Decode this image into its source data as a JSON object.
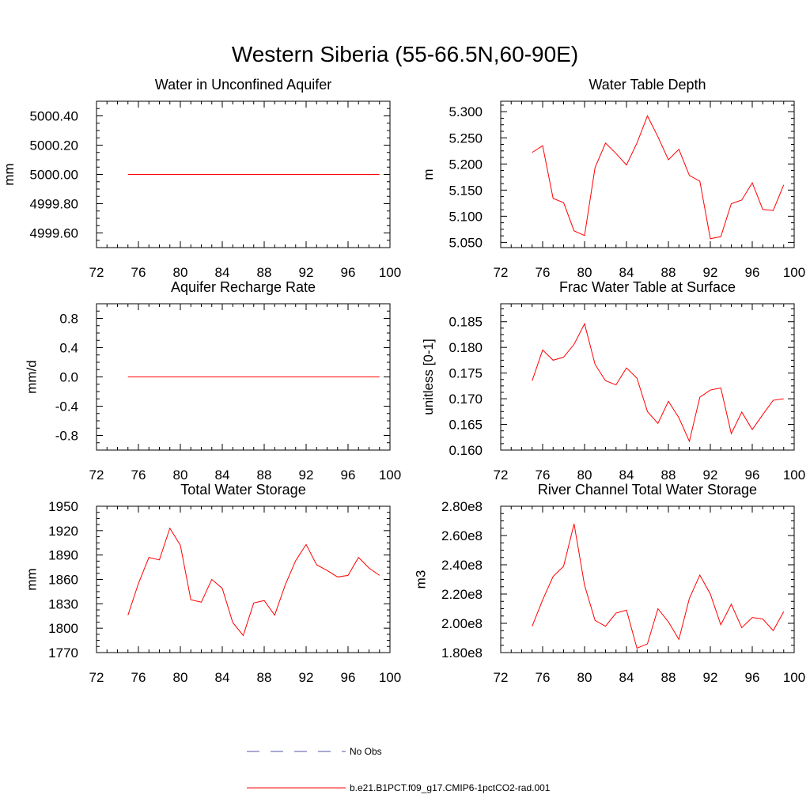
{
  "figure": {
    "title": "Western Siberia (55-66.5N,60-90E)"
  },
  "colors": {
    "model_line": "#ff0000",
    "obs_line": "#5555aa",
    "axis": "#000000"
  },
  "legend": {
    "items": [
      {
        "label": "No Obs",
        "style": "dashed",
        "color": "#5555aa"
      },
      {
        "label": "b.e21.B1PCT.f09_g17.CMIP6-1pctCO2-rad.001",
        "style": "solid",
        "color": "#ff0000"
      }
    ]
  },
  "chart_data": [
    {
      "type": "line",
      "title": "Water in Unconfined Aquifer",
      "xlabel": "",
      "ylabel": "mm",
      "xlim": [
        72,
        100
      ],
      "ylim": [
        4999.5,
        5000.5
      ],
      "xticks": [
        "72",
        "76",
        "80",
        "84",
        "88",
        "92",
        "96",
        "100"
      ],
      "yticks": [
        "4999.60",
        "4999.80",
        "5000.00",
        "5000.20",
        "5000.40"
      ],
      "ytick_values": [
        4999.6,
        4999.8,
        5000.0,
        5000.2,
        5000.4
      ],
      "series": [
        {
          "x": [
            75,
            76,
            77,
            78,
            79,
            80,
            81,
            82,
            83,
            84,
            85,
            86,
            87,
            88,
            89,
            90,
            91,
            92,
            93,
            94,
            95,
            96,
            97,
            98,
            99
          ],
          "values": [
            5000,
            5000,
            5000,
            5000,
            5000,
            5000,
            5000,
            5000,
            5000,
            5000,
            5000,
            5000,
            5000,
            5000,
            5000,
            5000,
            5000,
            5000,
            5000,
            5000,
            5000,
            5000,
            5000,
            5000,
            5000
          ]
        }
      ]
    },
    {
      "type": "line",
      "title": "Water Table Depth",
      "xlabel": "",
      "ylabel": "m",
      "xlim": [
        72,
        100
      ],
      "ylim": [
        5.04,
        5.32
      ],
      "xticks": [
        "72",
        "76",
        "80",
        "84",
        "88",
        "92",
        "96",
        "100"
      ],
      "yticks": [
        "5.050",
        "5.100",
        "5.150",
        "5.200",
        "5.250",
        "5.300"
      ],
      "ytick_values": [
        5.05,
        5.1,
        5.15,
        5.2,
        5.25,
        5.3
      ],
      "series": [
        {
          "x": [
            75,
            76,
            77,
            78,
            79,
            80,
            81,
            82,
            83,
            84,
            85,
            86,
            87,
            88,
            89,
            90,
            91,
            92,
            93,
            94,
            95,
            96,
            97,
            98,
            99
          ],
          "values": [
            5.222,
            5.235,
            5.134,
            5.126,
            5.072,
            5.063,
            5.193,
            5.24,
            5.22,
            5.198,
            5.24,
            5.292,
            5.252,
            5.208,
            5.228,
            5.178,
            5.167,
            5.057,
            5.061,
            5.124,
            5.131,
            5.164,
            5.113,
            5.111,
            5.16
          ]
        }
      ]
    },
    {
      "type": "line",
      "title": "Aquifer Recharge Rate",
      "xlabel": "",
      "ylabel": "mm/d",
      "xlim": [
        72,
        100
      ],
      "ylim": [
        -1.0,
        1.0
      ],
      "xticks": [
        "72",
        "76",
        "80",
        "84",
        "88",
        "92",
        "96",
        "100"
      ],
      "yticks": [
        "-0.8",
        "-0.4",
        "0.0",
        "0.4",
        "0.8"
      ],
      "ytick_values": [
        -0.8,
        -0.4,
        0.0,
        0.4,
        0.8
      ],
      "series": [
        {
          "x": [
            75,
            76,
            77,
            78,
            79,
            80,
            81,
            82,
            83,
            84,
            85,
            86,
            87,
            88,
            89,
            90,
            91,
            92,
            93,
            94,
            95,
            96,
            97,
            98,
            99
          ],
          "values": [
            0,
            0,
            0,
            0,
            0,
            0,
            0,
            0,
            0,
            0,
            0,
            0,
            0,
            0,
            0,
            0,
            0,
            0,
            0,
            0,
            0,
            0,
            0,
            0,
            0
          ]
        }
      ]
    },
    {
      "type": "line",
      "title": "Frac Water Table at Surface",
      "xlabel": "",
      "ylabel": "unitless [0-1]",
      "xlim": [
        72,
        100
      ],
      "ylim": [
        0.16,
        0.1885
      ],
      "xticks": [
        "72",
        "76",
        "80",
        "84",
        "88",
        "92",
        "96",
        "100"
      ],
      "yticks": [
        "0.160",
        "0.165",
        "0.170",
        "0.175",
        "0.180",
        "0.185"
      ],
      "ytick_values": [
        0.16,
        0.165,
        0.17,
        0.175,
        0.18,
        0.185
      ],
      "series": [
        {
          "x": [
            75,
            76,
            77,
            78,
            79,
            80,
            81,
            82,
            83,
            84,
            85,
            86,
            87,
            88,
            89,
            90,
            91,
            92,
            93,
            94,
            95,
            96,
            97,
            98,
            99
          ],
          "values": [
            0.1735,
            0.1795,
            0.1775,
            0.1781,
            0.1806,
            0.1846,
            0.1767,
            0.1735,
            0.1727,
            0.176,
            0.174,
            0.1675,
            0.1652,
            0.1695,
            0.1663,
            0.1617,
            0.1703,
            0.1717,
            0.1721,
            0.1632,
            0.1674,
            0.164,
            0.1669,
            0.1697,
            0.17
          ]
        }
      ]
    },
    {
      "type": "line",
      "title": "Total Water Storage",
      "xlabel": "",
      "ylabel": "mm",
      "xlim": [
        72,
        100
      ],
      "ylim": [
        1770,
        1950
      ],
      "xticks": [
        "72",
        "76",
        "80",
        "84",
        "88",
        "92",
        "96",
        "100"
      ],
      "yticks": [
        "1770",
        "1800",
        "1830",
        "1860",
        "1890",
        "1920",
        "1950"
      ],
      "ytick_values": [
        1770,
        1800,
        1830,
        1860,
        1890,
        1920,
        1950
      ],
      "series": [
        {
          "x": [
            75,
            76,
            77,
            78,
            79,
            80,
            81,
            82,
            83,
            84,
            85,
            86,
            87,
            88,
            89,
            90,
            91,
            92,
            93,
            94,
            95,
            96,
            97,
            98,
            99
          ],
          "values": [
            1816,
            1855,
            1887,
            1884,
            1923,
            1902,
            1835,
            1832,
            1860,
            1849,
            1807,
            1791,
            1831,
            1834,
            1816,
            1853,
            1883,
            1903,
            1878,
            1871,
            1863,
            1865,
            1887,
            1874,
            1865
          ]
        }
      ]
    },
    {
      "type": "line",
      "title": "River Channel Total Water Storage",
      "xlabel": "",
      "ylabel": "m3",
      "xlim": [
        72,
        100
      ],
      "ylim": [
        180000000,
        280000000
      ],
      "xticks": [
        "72",
        "76",
        "80",
        "84",
        "88",
        "92",
        "96",
        "100"
      ],
      "yticks": [
        "1.80e8",
        "2.00e8",
        "2.20e8",
        "2.40e8",
        "2.60e8",
        "2.80e8"
      ],
      "ytick_values": [
        180000000,
        200000000,
        220000000,
        240000000,
        260000000,
        280000000
      ],
      "series": [
        {
          "x": [
            75,
            76,
            77,
            78,
            79,
            80,
            81,
            82,
            83,
            84,
            85,
            86,
            87,
            88,
            89,
            90,
            91,
            92,
            93,
            94,
            95,
            96,
            97,
            98,
            99
          ],
          "values": [
            198000000,
            216000000,
            232000000,
            239000000,
            268000000,
            226000000,
            202000000,
            198000000,
            207000000,
            209000000,
            183000000,
            186000000,
            210000000,
            201000000,
            189000000,
            217000000,
            233000000,
            220000000,
            199000000,
            213000000,
            197000000,
            204000000,
            203000000,
            195000000,
            208000000
          ]
        }
      ]
    }
  ]
}
